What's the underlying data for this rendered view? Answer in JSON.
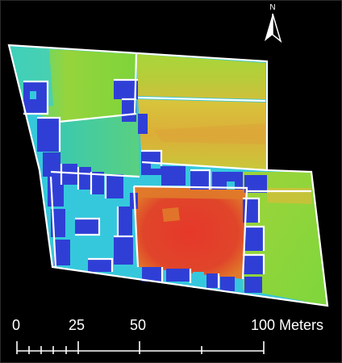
{
  "north_arrow": {
    "letter": "N",
    "icon": "north-arrow-icon"
  },
  "scale_bar": {
    "labels": [
      "0",
      "25",
      "50",
      "100 Meters"
    ]
  },
  "legend_colors": {
    "highest": "#e03a2a",
    "high": "#e07a2a",
    "mid_high": "#d8b83a",
    "mid": "#b8cc3a",
    "mid_low": "#7ed43a",
    "low": "#2fd0b0",
    "lower": "#35c8dc",
    "lowest": "#2f3fd6",
    "walls": "#ffffff",
    "background": "#000000"
  }
}
